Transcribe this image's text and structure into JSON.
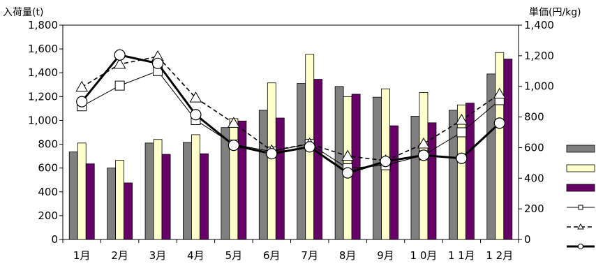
{
  "chart_data": {
    "type": "bar",
    "title": "",
    "left_axis_label": "入荷量(t)",
    "right_axis_label": "単価(円/kg)",
    "categories": [
      "1月",
      "2月",
      "3月",
      "4月",
      "5月",
      "6月",
      "7月",
      "8月",
      "9月",
      "10月",
      "11月",
      "12月"
    ],
    "category_tick_labels": [
      "1月",
      "2月",
      "3月",
      "4月",
      "5月",
      "6月",
      "7月",
      "8月",
      "9月",
      "1 0月",
      "1 1月",
      "1 2月"
    ],
    "left_ylim": [
      0,
      1800
    ],
    "left_yticks": [
      "0",
      "200",
      "400",
      "600",
      "800",
      "1,000",
      "1,200",
      "1,400",
      "1,600",
      "1,800"
    ],
    "right_ylim": [
      0,
      1400
    ],
    "right_yticks": [
      "0",
      "200",
      "400",
      "600",
      "800",
      "1,000",
      "1,200",
      "1,400"
    ],
    "grid": false,
    "legend_position": "right",
    "bar_series": [
      {
        "color": "#808080",
        "values": [
          735,
          600,
          810,
          815,
          940,
          1085,
          1310,
          1285,
          1195,
          1035,
          1085,
          1390
        ]
      },
      {
        "color": "#ffffcc",
        "values": [
          810,
          665,
          840,
          880,
          1015,
          1315,
          1555,
          1200,
          1265,
          1235,
          1130,
          1570
        ]
      },
      {
        "color": "#660066",
        "values": [
          635,
          475,
          715,
          720,
          995,
          1020,
          1345,
          1220,
          955,
          980,
          1145,
          1515
        ]
      }
    ],
    "line_series": [
      {
        "marker": "square",
        "style": "solid-thin",
        "values": [
          870,
          1005,
          1100,
          780,
          620,
          575,
          625,
          465,
          485,
          550,
          700,
          910
        ]
      },
      {
        "marker": "triangle",
        "style": "dashed",
        "values": [
          995,
          1145,
          1195,
          925,
          760,
          580,
          625,
          545,
          515,
          625,
          780,
          950
        ]
      },
      {
        "marker": "circle",
        "style": "solid-thick",
        "values": [
          900,
          1205,
          1150,
          815,
          615,
          560,
          605,
          435,
          510,
          550,
          530,
          760
        ]
      }
    ]
  }
}
